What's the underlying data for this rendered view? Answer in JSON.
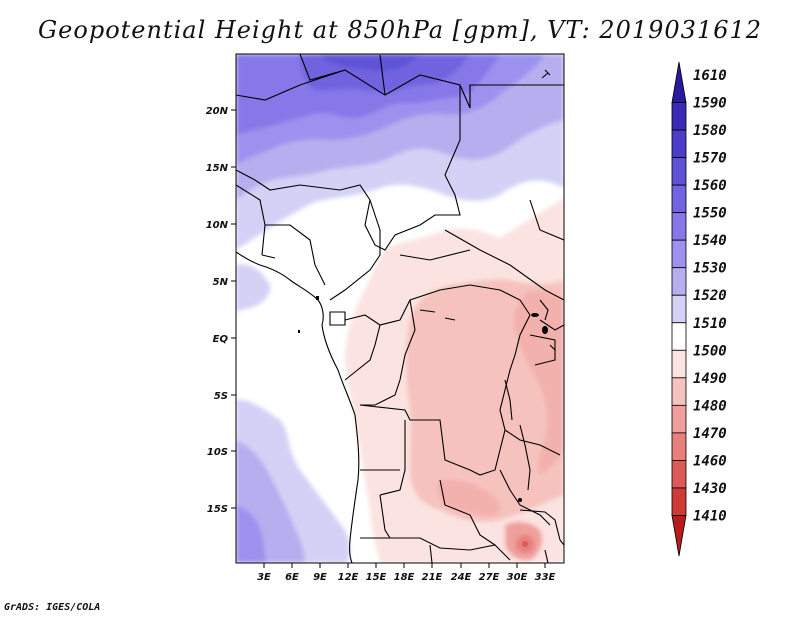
{
  "title": "Geopotential Height at 850hPa [gpm], VT: 2019031612",
  "footer": "GrADS: IGES/COLA",
  "map": {
    "lat_labels": [
      "20N",
      "15N",
      "10N",
      "5N",
      "EQ",
      "5S",
      "10S",
      "15S"
    ],
    "lon_labels": [
      "3E",
      "6E",
      "9E",
      "12E",
      "15E",
      "18E",
      "21E",
      "24E",
      "27E",
      "30E",
      "33E"
    ]
  },
  "colorbar": {
    "labels": [
      "1610",
      "1590",
      "1580",
      "1570",
      "1560",
      "1550",
      "1540",
      "1530",
      "1520",
      "1510",
      "1500",
      "1490",
      "1480",
      "1470",
      "1460",
      "1430",
      "1410"
    ],
    "colors": [
      "#2a1a9e",
      "#3a2bb6",
      "#4c3dc8",
      "#5e52d6",
      "#7164e0",
      "#8678e8",
      "#9c91ee",
      "#b6afef",
      "#d3d2f6",
      "#ffffff",
      "#fbe3e1",
      "#f6c2be",
      "#efa09c",
      "#e77f7b",
      "#dc5a57",
      "#cf3a36",
      "#b81d1d"
    ]
  }
}
